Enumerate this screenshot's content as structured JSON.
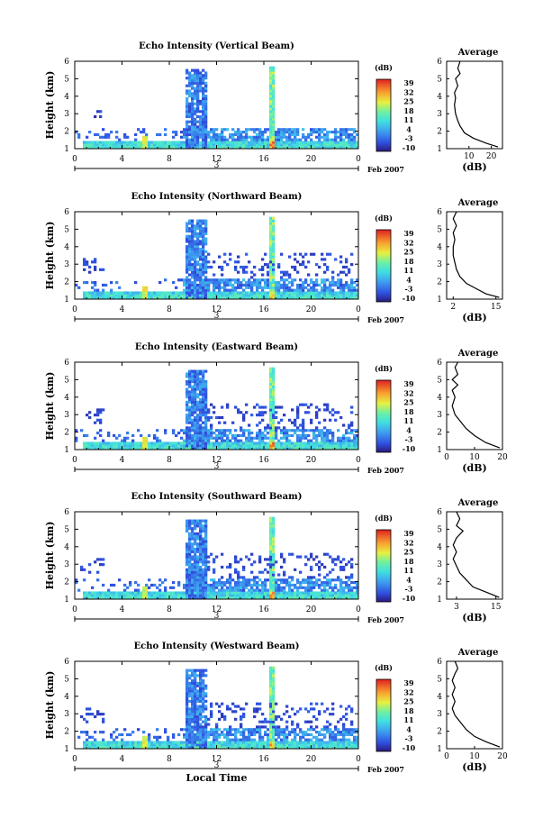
{
  "chart_data": [
    {
      "type": "heatmap",
      "title": "Echo Intensity (Vertical Beam)",
      "ylabel": "Height (km)",
      "ylim": [
        1,
        6
      ],
      "yticks": [
        1,
        2,
        3,
        4,
        5,
        6
      ],
      "xticks": [
        "0",
        "4",
        "8",
        "12",
        "16",
        "20",
        "0"
      ],
      "date_marker": "3",
      "date_label": "Feb 2007",
      "colorbar": {
        "unit": "(dB)",
        "ticks": [
          "39",
          "32",
          "25",
          "18",
          "11",
          "4",
          "-3",
          "-10"
        ]
      },
      "average": {
        "title": "Average",
        "xlabel": "(dB)",
        "xticks": [
          "10",
          "20"
        ],
        "xlim": [
          0,
          25
        ],
        "ylim": [
          1,
          6
        ],
        "profile": [
          [
            23,
            1.1
          ],
          [
            18,
            1.3
          ],
          [
            12,
            1.6
          ],
          [
            8,
            1.9
          ],
          [
            6,
            2.3
          ],
          [
            5,
            2.6
          ],
          [
            4,
            3.0
          ],
          [
            3.5,
            3.5
          ],
          [
            4,
            3.9
          ],
          [
            3.5,
            4.2
          ],
          [
            5,
            4.6
          ],
          [
            4,
            5.0
          ],
          [
            6,
            5.3
          ],
          [
            5,
            5.6
          ],
          [
            6,
            6.0
          ]
        ]
      }
    },
    {
      "type": "heatmap",
      "title": "Echo Intensity (Northward Beam)",
      "ylabel": "Height (km)",
      "ylim": [
        1,
        6
      ],
      "yticks": [
        1,
        2,
        3,
        4,
        5,
        6
      ],
      "xticks": [
        "0",
        "4",
        "8",
        "12",
        "16",
        "20",
        "0"
      ],
      "date_marker": "3",
      "date_label": "Feb 2007",
      "colorbar": {
        "unit": "(dB)",
        "ticks": [
          "39",
          "32",
          "25",
          "18",
          "11",
          "4",
          "-3",
          "-10"
        ]
      },
      "average": {
        "title": "Average",
        "xlabel": "(dB)",
        "xticks": [
          "2",
          "15"
        ],
        "xlim": [
          0,
          17
        ],
        "ylim": [
          1,
          6
        ],
        "profile": [
          [
            16,
            1.1
          ],
          [
            12,
            1.3
          ],
          [
            9,
            1.6
          ],
          [
            6,
            1.9
          ],
          [
            4,
            2.3
          ],
          [
            3,
            2.7
          ],
          [
            2.5,
            3.1
          ],
          [
            2,
            3.5
          ],
          [
            2,
            4.0
          ],
          [
            2.5,
            4.4
          ],
          [
            2,
            4.8
          ],
          [
            3,
            5.2
          ],
          [
            2,
            5.6
          ],
          [
            3,
            6.0
          ]
        ]
      }
    },
    {
      "type": "heatmap",
      "title": "Echo Intensity (Eastward Beam)",
      "ylabel": "Height (km)",
      "ylim": [
        1,
        6
      ],
      "yticks": [
        1,
        2,
        3,
        4,
        5,
        6
      ],
      "xticks": [
        "0",
        "4",
        "8",
        "12",
        "16",
        "20",
        "0"
      ],
      "date_marker": "3",
      "date_label": "Feb 2007",
      "colorbar": {
        "unit": "(dB)",
        "ticks": [
          "39",
          "32",
          "25",
          "18",
          "11",
          "4",
          "-3",
          "-10"
        ]
      },
      "average": {
        "title": "Average",
        "xlabel": "(dB)",
        "xticks": [
          "0",
          "10",
          "20"
        ],
        "xlim": [
          0,
          20
        ],
        "ylim": [
          1,
          6
        ],
        "profile": [
          [
            19,
            1.1
          ],
          [
            14,
            1.4
          ],
          [
            10,
            1.8
          ],
          [
            7,
            2.2
          ],
          [
            5,
            2.6
          ],
          [
            3,
            3.0
          ],
          [
            2,
            3.5
          ],
          [
            3,
            4.0
          ],
          [
            2,
            4.4
          ],
          [
            4,
            4.7
          ],
          [
            2,
            5.0
          ],
          [
            4,
            5.3
          ],
          [
            3,
            5.7
          ],
          [
            4,
            6.0
          ]
        ]
      }
    },
    {
      "type": "heatmap",
      "title": "Echo Intensity (Southward Beam)",
      "ylabel": "Height (km)",
      "ylim": [
        1,
        6
      ],
      "yticks": [
        1,
        2,
        3,
        4,
        5,
        6
      ],
      "xticks": [
        "0",
        "4",
        "8",
        "12",
        "16",
        "20",
        "0"
      ],
      "date_marker": "3",
      "date_label": "Feb 2007",
      "colorbar": {
        "unit": "(dB)",
        "ticks": [
          "39",
          "32",
          "25",
          "18",
          "11",
          "4",
          "-3",
          "-10"
        ]
      },
      "average": {
        "title": "Average",
        "xlabel": "(dB)",
        "xticks": [
          "3",
          "15"
        ],
        "xlim": [
          0,
          17
        ],
        "ylim": [
          1,
          6
        ],
        "profile": [
          [
            16,
            1.1
          ],
          [
            12,
            1.4
          ],
          [
            8,
            1.7
          ],
          [
            6,
            2.1
          ],
          [
            4,
            2.5
          ],
          [
            3,
            2.9
          ],
          [
            2,
            3.3
          ],
          [
            3,
            3.7
          ],
          [
            2,
            4.1
          ],
          [
            3,
            4.5
          ],
          [
            5,
            4.9
          ],
          [
            3,
            5.2
          ],
          [
            4,
            5.6
          ],
          [
            3,
            6.0
          ]
        ]
      }
    },
    {
      "type": "heatmap",
      "title": "Echo Intensity (Westward Beam)",
      "ylabel": "Height (km)",
      "xlabel": "Local Time",
      "ylim": [
        1,
        6
      ],
      "yticks": [
        1,
        2,
        3,
        4,
        5,
        6
      ],
      "xticks": [
        "0",
        "4",
        "8",
        "12",
        "16",
        "20",
        "0"
      ],
      "date_marker": "3",
      "date_label": "Feb 2007",
      "colorbar": {
        "unit": "(dB)",
        "ticks": [
          "39",
          "32",
          "25",
          "18",
          "11",
          "4",
          "-3",
          "-10"
        ]
      },
      "average": {
        "title": "Average",
        "xlabel": "(dB)",
        "xticks": [
          "0",
          "10",
          "20"
        ],
        "xlim": [
          0,
          20
        ],
        "ylim": [
          1,
          6
        ],
        "profile": [
          [
            19,
            1.1
          ],
          [
            14,
            1.4
          ],
          [
            10,
            1.7
          ],
          [
            7,
            2.1
          ],
          [
            5,
            2.5
          ],
          [
            3,
            2.9
          ],
          [
            2,
            3.3
          ],
          [
            3,
            3.7
          ],
          [
            2,
            4.1
          ],
          [
            3,
            4.5
          ],
          [
            2,
            4.9
          ],
          [
            3,
            5.3
          ],
          [
            4,
            5.6
          ],
          [
            3,
            6.0
          ]
        ]
      }
    }
  ]
}
